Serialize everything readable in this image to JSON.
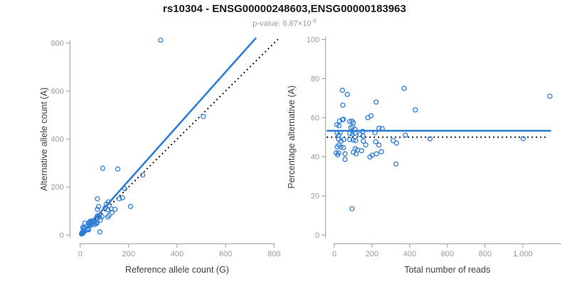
{
  "header": {
    "title": "rs10304 - ENSG00000248603,ENSG00000183963",
    "subtitle_prefix": "p-value: 6.87×10",
    "subtitle_exponent": "-9"
  },
  "colors": {
    "point": "#2f7ed8",
    "solid_line": "#2f7ed8",
    "dotted_line": "#000000",
    "axis_line": "#999999",
    "tick_label": "#999999",
    "axis_label": "#404040",
    "title": "#1a1a1a",
    "subtitle": "#999999"
  },
  "chart_data": [
    {
      "type": "scatter",
      "name": "allele-counts",
      "xlabel": "Reference allele count (G)",
      "ylabel": "Alternative allele count (A)",
      "xlim": [
        0,
        800
      ],
      "ylim": [
        0,
        800
      ],
      "xticks": [
        0,
        200,
        400,
        600,
        800
      ],
      "xtick_labels": [
        "0",
        "200",
        "400",
        "600",
        "800"
      ],
      "yticks": [
        0,
        200,
        400,
        600,
        800
      ],
      "ytick_labels": [
        "0",
        "200",
        "400",
        "600",
        "800"
      ],
      "grid": false,
      "points": {
        "x": [
          332,
          508,
          258,
          155,
          93,
          184,
          208,
          161,
          175,
          128,
          144,
          71,
          76,
          71,
          119,
          90,
          75,
          81,
          116,
          108,
          103,
          115,
          131,
          114,
          71,
          80,
          83,
          66,
          70,
          68,
          62,
          51,
          53,
          58,
          43,
          58,
          51,
          44,
          46,
          39,
          40,
          34,
          39,
          42,
          19,
          33,
          35,
          26,
          27,
          20,
          15,
          11,
          18,
          18,
          19,
          15,
          12,
          11,
          14,
          12,
          12,
          13,
          11,
          7,
          8,
          6,
          6
        ],
        "y": [
          812,
          494,
          250,
          275,
          278,
          193,
          119,
          151,
          155,
          109,
          107,
          151,
          119,
          107,
          82,
          77,
          77,
          13,
          138,
          129,
          113,
          105,
          93,
          75,
          80,
          74,
          62,
          70,
          53,
          48,
          49,
          59,
          57,
          55,
          58,
          43,
          49,
          54,
          50,
          55,
          48,
          48,
          43,
          40,
          50,
          24,
          22,
          24,
          21,
          28,
          30,
          32,
          26,
          17,
          16,
          17,
          16,
          14,
          12,
          12,
          11,
          10,
          7,
          8,
          7,
          7,
          4
        ]
      },
      "lines": [
        {
          "name": "regression-line",
          "style": "solid",
          "x1": 0,
          "y1": 0,
          "x2": 726,
          "y2": 822
        },
        {
          "name": "identity-line",
          "style": "dotted",
          "x1": 0,
          "y1": 0,
          "x2": 816,
          "y2": 816
        }
      ]
    },
    {
      "type": "scatter",
      "name": "percentage-vs-reads",
      "xlabel": "Total number of reads",
      "ylabel": "Percentage alternative (A)",
      "xlim": [
        0,
        1200
      ],
      "ylim": [
        0,
        100
      ],
      "xticks": [
        0,
        200,
        400,
        600,
        800,
        1000
      ],
      "xtick_labels": [
        "0",
        "200",
        "400",
        "600",
        "800",
        "1,000"
      ],
      "yticks": [
        0,
        20,
        40,
        60,
        80,
        100
      ],
      "ytick_labels": [
        "0",
        "20",
        "40",
        "60",
        "80",
        "100"
      ],
      "grid": false,
      "points": {
        "x": [
          1144,
          1002,
          508,
          430,
          371,
          377,
          327,
          312,
          330,
          237,
          250,
          222,
          195,
          178,
          201,
          167,
          152,
          94,
          254,
          237,
          216,
          220,
          224,
          189,
          151,
          154,
          145,
          136,
          123,
          116,
          111,
          110,
          110,
          113,
          101,
          101,
          100,
          98,
          96,
          94,
          88,
          82,
          82,
          82,
          69,
          57,
          57,
          50,
          48,
          48,
          45,
          43,
          44,
          35,
          35,
          32,
          28,
          25,
          25,
          24,
          23,
          23,
          18,
          15,
          15,
          13,
          10
        ],
        "y": [
          71.0,
          49.3,
          49.2,
          64.0,
          75.0,
          51.1,
          36.3,
          48.3,
          47.0,
          46.0,
          42.6,
          68.0,
          61.0,
          60.0,
          40.8,
          46.1,
          50.7,
          13.4,
          54.4,
          54.6,
          52.3,
          47.7,
          41.5,
          39.9,
          53.0,
          48.0,
          43.1,
          51.4,
          43.5,
          41.5,
          44.1,
          54.0,
          52.0,
          48.3,
          57.4,
          42.3,
          48.6,
          55.3,
          51.6,
          58.3,
          55.0,
          58.0,
          52.0,
          48.8,
          71.9,
          41.5,
          38.7,
          48.8,
          44.7,
          59.2,
          66.4,
          74.0,
          59.0,
          48.0,
          45.0,
          52.4,
          58.3,
          55.9,
          46.0,
          51.0,
          49.0,
          42.0,
          41.0,
          52.0,
          45.1,
          56.4,
          42.0
        ]
      },
      "lines": [
        {
          "name": "mean-percentage-line",
          "style": "solid",
          "x1": -40,
          "y1": 53.3,
          "x2": 1150,
          "y2": 53.3
        },
        {
          "name": "fifty-percent-line",
          "style": "dotted",
          "x1": -40,
          "y1": 50,
          "x2": 1125,
          "y2": 50
        }
      ]
    }
  ]
}
